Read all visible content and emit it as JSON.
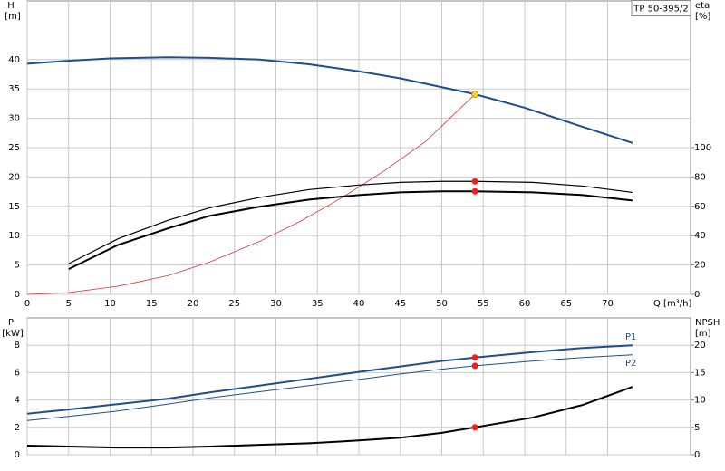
{
  "chart_data": [
    {
      "type": "line",
      "title": "TP 50-395/2",
      "x_label": "Q [m³/h]",
      "y_label": "H",
      "y_unit": "[m]",
      "y2_label": "eta",
      "y2_unit": "[%]",
      "xlim": [
        0,
        80
      ],
      "xticks": [
        0,
        5,
        10,
        15,
        20,
        25,
        30,
        35,
        40,
        45,
        50,
        55,
        60,
        65,
        70
      ],
      "ylim": [
        0,
        50
      ],
      "yticks": [
        0,
        5,
        10,
        15,
        20,
        25,
        30,
        35,
        40
      ],
      "y2lim": [
        0,
        200
      ],
      "y2ticks": [
        0,
        20,
        40,
        60,
        80,
        100
      ],
      "grid": true,
      "series": [
        {
          "color": "#1f4e8c",
          "width": 2,
          "axis": "y",
          "x": [
            0,
            5,
            10,
            17,
            22,
            28,
            34,
            40,
            45,
            50,
            54,
            60,
            66,
            73
          ],
          "values": [
            39.3,
            39.8,
            40.2,
            40.4,
            40.3,
            40.0,
            39.2,
            38.0,
            36.8,
            35.3,
            34.1,
            31.8,
            29.0,
            25.8
          ]
        },
        {
          "color": "#e53030",
          "width": 0.8,
          "axis": "y",
          "x": [
            0,
            5,
            11,
            17,
            22,
            28,
            33,
            38,
            43,
            48,
            54
          ],
          "values": [
            0,
            0.3,
            1.4,
            3.2,
            5.5,
            9,
            12.5,
            16.5,
            21,
            26,
            34.1
          ]
        },
        {
          "color": "#000000",
          "width": 1.2,
          "axis": "y2",
          "x": [
            5,
            11,
            17,
            22,
            28,
            34,
            40,
            45,
            50,
            54,
            61,
            67,
            73
          ],
          "values": [
            20.9,
            38,
            50.5,
            59,
            66,
            71.4,
            74.5,
            76.3,
            77,
            77,
            76.3,
            73.8,
            69.5
          ]
        },
        {
          "color": "#000000",
          "width": 2,
          "axis": "y2",
          "x": [
            5,
            11,
            17,
            22,
            28,
            34,
            40,
            45,
            50,
            54,
            61,
            67,
            73
          ],
          "values": [
            17.2,
            33.8,
            45,
            53.5,
            59.7,
            64.6,
            67.7,
            69.5,
            70.2,
            70.2,
            69.5,
            67.7,
            64
          ]
        }
      ],
      "points": [
        {
          "x": 54,
          "y": 34.1,
          "axis": "y",
          "color": "#ffd21f"
        },
        {
          "x": 54,
          "y": 77,
          "axis": "y2",
          "color": "#ff1a1a"
        },
        {
          "x": 54,
          "y": 70.2,
          "axis": "y2",
          "color": "#ff1a1a"
        }
      ]
    },
    {
      "type": "line",
      "y_label": "P",
      "y_unit": "[kW]",
      "y2_label": "NPSH",
      "y2_unit": "[m]",
      "ylim": [
        0,
        10
      ],
      "yticks": [
        0,
        2,
        4,
        6,
        8
      ],
      "y2lim": [
        0,
        25
      ],
      "y2ticks": [
        0,
        5,
        10,
        15,
        20
      ],
      "grid": true,
      "series": [
        {
          "name": "P1",
          "color": "#1f4e8c",
          "width": 2,
          "axis": "y",
          "x": [
            0,
            5,
            11,
            17,
            22,
            28,
            34,
            40,
            45,
            50,
            54,
            61,
            67,
            73
          ],
          "values": [
            3.0,
            3.3,
            3.7,
            4.1,
            4.55,
            5.05,
            5.55,
            6.05,
            6.45,
            6.85,
            7.1,
            7.5,
            7.8,
            8.0
          ]
        },
        {
          "name": "P2",
          "color": "#1f4e8c",
          "width": 1,
          "axis": "y",
          "x": [
            0,
            5,
            11,
            17,
            22,
            28,
            34,
            40,
            45,
            50,
            54,
            61,
            67,
            73
          ],
          "values": [
            2.5,
            2.8,
            3.2,
            3.7,
            4.15,
            4.6,
            5.05,
            5.5,
            5.9,
            6.25,
            6.5,
            6.85,
            7.1,
            7.3
          ]
        },
        {
          "color": "#000000",
          "width": 2,
          "axis": "y2",
          "x": [
            0,
            5,
            11,
            17,
            22,
            28,
            34,
            40,
            45,
            50,
            54,
            61,
            67,
            73
          ],
          "values": [
            1.65,
            1.5,
            1.3,
            1.3,
            1.5,
            1.8,
            2.1,
            2.6,
            3.1,
            4.0,
            5.0,
            6.8,
            9.1,
            12.4
          ]
        }
      ],
      "points": [
        {
          "x": 54,
          "y": 7.1,
          "axis": "y",
          "color": "#ff1a1a"
        },
        {
          "x": 54,
          "y": 6.5,
          "axis": "y",
          "color": "#ff1a1a"
        },
        {
          "x": 54,
          "y": 5.0,
          "axis": "y2",
          "color": "#ff1a1a"
        }
      ]
    }
  ]
}
